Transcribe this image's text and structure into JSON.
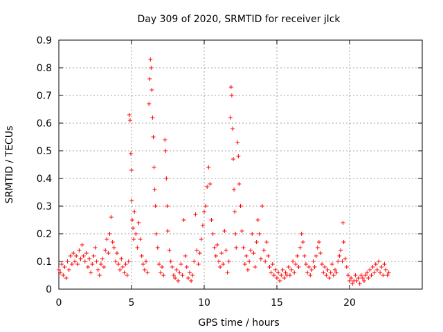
{
  "chart_data": {
    "type": "scatter",
    "title": "Day 309 of 2020, SRMTID for receiver jlck",
    "xlabel": "GPS time / hours",
    "ylabel": "SRMTID / TECUs",
    "xlim": [
      0,
      25
    ],
    "ylim": [
      0,
      0.9
    ],
    "xticks": [
      0,
      5,
      10,
      15,
      20
    ],
    "yticks": [
      0,
      0.1,
      0.2,
      0.3,
      0.4,
      0.5,
      0.6,
      0.7,
      0.8,
      0.9
    ],
    "grid": true,
    "marker": "+",
    "color": "#ff0000",
    "series": [
      {
        "name": "SRMTID",
        "points": [
          [
            0.0,
            0.07
          ],
          [
            0.1,
            0.06
          ],
          [
            0.2,
            0.09
          ],
          [
            0.3,
            0.05
          ],
          [
            0.4,
            0.08
          ],
          [
            0.5,
            0.04
          ],
          [
            0.6,
            0.1
          ],
          [
            0.7,
            0.07
          ],
          [
            0.8,
            0.12
          ],
          [
            0.9,
            0.09
          ],
          [
            1.0,
            0.13
          ],
          [
            1.1,
            0.1
          ],
          [
            1.2,
            0.12
          ],
          [
            1.3,
            0.09
          ],
          [
            1.4,
            0.14
          ],
          [
            1.5,
            0.11
          ],
          [
            1.6,
            0.16
          ],
          [
            1.7,
            0.12
          ],
          [
            1.8,
            0.1
          ],
          [
            1.9,
            0.13
          ],
          [
            2.0,
            0.08
          ],
          [
            2.1,
            0.11
          ],
          [
            2.2,
            0.06
          ],
          [
            2.3,
            0.09
          ],
          [
            2.4,
            0.12
          ],
          [
            2.5,
            0.15
          ],
          [
            2.6,
            0.1
          ],
          [
            2.7,
            0.07
          ],
          [
            2.8,
            0.05
          ],
          [
            2.9,
            0.09
          ],
          [
            3.0,
            0.11
          ],
          [
            3.1,
            0.08
          ],
          [
            3.2,
            0.14
          ],
          [
            3.3,
            0.18
          ],
          [
            3.4,
            0.13
          ],
          [
            3.5,
            0.2
          ],
          [
            3.6,
            0.26
          ],
          [
            3.7,
            0.17
          ],
          [
            3.8,
            0.15
          ],
          [
            3.9,
            0.1
          ],
          [
            4.0,
            0.13
          ],
          [
            4.1,
            0.09
          ],
          [
            4.2,
            0.07
          ],
          [
            4.3,
            0.11
          ],
          [
            4.4,
            0.08
          ],
          [
            4.5,
            0.06
          ],
          [
            4.6,
            0.09
          ],
          [
            4.7,
            0.05
          ],
          [
            4.8,
            0.1
          ],
          [
            4.85,
            0.63
          ],
          [
            4.9,
            0.61
          ],
          [
            4.95,
            0.49
          ],
          [
            5.0,
            0.43
          ],
          [
            5.02,
            0.32
          ],
          [
            5.05,
            0.25
          ],
          [
            5.1,
            0.22
          ],
          [
            5.15,
            0.18
          ],
          [
            5.2,
            0.28
          ],
          [
            5.3,
            0.2
          ],
          [
            5.4,
            0.15
          ],
          [
            5.5,
            0.24
          ],
          [
            5.6,
            0.18
          ],
          [
            5.7,
            0.12
          ],
          [
            5.8,
            0.09
          ],
          [
            5.9,
            0.07
          ],
          [
            6.0,
            0.1
          ],
          [
            6.1,
            0.06
          ],
          [
            6.2,
            0.67
          ],
          [
            6.25,
            0.76
          ],
          [
            6.3,
            0.83
          ],
          [
            6.35,
            0.8
          ],
          [
            6.4,
            0.72
          ],
          [
            6.45,
            0.62
          ],
          [
            6.5,
            0.55
          ],
          [
            6.55,
            0.44
          ],
          [
            6.6,
            0.36
          ],
          [
            6.65,
            0.3
          ],
          [
            6.7,
            0.2
          ],
          [
            6.8,
            0.15
          ],
          [
            6.9,
            0.09
          ],
          [
            7.0,
            0.06
          ],
          [
            7.1,
            0.08
          ],
          [
            7.2,
            0.05
          ],
          [
            7.3,
            0.54
          ],
          [
            7.35,
            0.5
          ],
          [
            7.4,
            0.4
          ],
          [
            7.45,
            0.3
          ],
          [
            7.5,
            0.21
          ],
          [
            7.6,
            0.14
          ],
          [
            7.7,
            0.1
          ],
          [
            7.8,
            0.08
          ],
          [
            7.9,
            0.05
          ],
          [
            8.0,
            0.04
          ],
          [
            8.1,
            0.07
          ],
          [
            8.2,
            0.03
          ],
          [
            8.3,
            0.06
          ],
          [
            8.4,
            0.09
          ],
          [
            8.5,
            0.05
          ],
          [
            8.6,
            0.25
          ],
          [
            8.7,
            0.12
          ],
          [
            8.8,
            0.08
          ],
          [
            8.9,
            0.04
          ],
          [
            9.0,
            0.06
          ],
          [
            9.1,
            0.03
          ],
          [
            9.2,
            0.05
          ],
          [
            9.3,
            0.1
          ],
          [
            9.4,
            0.27
          ],
          [
            9.5,
            0.14
          ],
          [
            9.6,
            0.09
          ],
          [
            9.7,
            0.13
          ],
          [
            9.8,
            0.18
          ],
          [
            9.9,
            0.23
          ],
          [
            10.0,
            0.28
          ],
          [
            10.1,
            0.3
          ],
          [
            10.2,
            0.37
          ],
          [
            10.3,
            0.44
          ],
          [
            10.4,
            0.38
          ],
          [
            10.5,
            0.25
          ],
          [
            10.6,
            0.2
          ],
          [
            10.7,
            0.15
          ],
          [
            10.8,
            0.12
          ],
          [
            10.9,
            0.16
          ],
          [
            11.0,
            0.1
          ],
          [
            11.1,
            0.08
          ],
          [
            11.2,
            0.13
          ],
          [
            11.3,
            0.09
          ],
          [
            11.4,
            0.21
          ],
          [
            11.5,
            0.14
          ],
          [
            11.6,
            0.06
          ],
          [
            11.7,
            0.1
          ],
          [
            11.8,
            0.62
          ],
          [
            11.85,
            0.73
          ],
          [
            11.9,
            0.7
          ],
          [
            11.95,
            0.58
          ],
          [
            12.0,
            0.47
          ],
          [
            12.05,
            0.36
          ],
          [
            12.1,
            0.28
          ],
          [
            12.15,
            0.2
          ],
          [
            12.2,
            0.15
          ],
          [
            12.3,
            0.53
          ],
          [
            12.35,
            0.48
          ],
          [
            12.4,
            0.38
          ],
          [
            12.5,
            0.3
          ],
          [
            12.6,
            0.21
          ],
          [
            12.7,
            0.15
          ],
          [
            12.8,
            0.09
          ],
          [
            12.9,
            0.12
          ],
          [
            13.0,
            0.07
          ],
          [
            13.1,
            0.1
          ],
          [
            13.2,
            0.14
          ],
          [
            13.3,
            0.2
          ],
          [
            13.4,
            0.13
          ],
          [
            13.5,
            0.08
          ],
          [
            13.6,
            0.17
          ],
          [
            13.7,
            0.25
          ],
          [
            13.8,
            0.2
          ],
          [
            13.9,
            0.11
          ],
          [
            14.0,
            0.3
          ],
          [
            14.1,
            0.14
          ],
          [
            14.2,
            0.1
          ],
          [
            14.3,
            0.17
          ],
          [
            14.4,
            0.12
          ],
          [
            14.5,
            0.08
          ],
          [
            14.6,
            0.06
          ],
          [
            14.7,
            0.09
          ],
          [
            14.8,
            0.05
          ],
          [
            14.9,
            0.07
          ],
          [
            15.0,
            0.04
          ],
          [
            15.1,
            0.06
          ],
          [
            15.2,
            0.03
          ],
          [
            15.3,
            0.05
          ],
          [
            15.4,
            0.07
          ],
          [
            15.5,
            0.04
          ],
          [
            15.6,
            0.06
          ],
          [
            15.7,
            0.05
          ],
          [
            15.8,
            0.08
          ],
          [
            15.9,
            0.05
          ],
          [
            16.0,
            0.07
          ],
          [
            16.1,
            0.1
          ],
          [
            16.2,
            0.06
          ],
          [
            16.3,
            0.09
          ],
          [
            16.4,
            0.12
          ],
          [
            16.5,
            0.08
          ],
          [
            16.6,
            0.15
          ],
          [
            16.7,
            0.2
          ],
          [
            16.8,
            0.17
          ],
          [
            16.9,
            0.12
          ],
          [
            17.0,
            0.09
          ],
          [
            17.1,
            0.06
          ],
          [
            17.2,
            0.08
          ],
          [
            17.3,
            0.05
          ],
          [
            17.4,
            0.07
          ],
          [
            17.5,
            0.1
          ],
          [
            17.6,
            0.08
          ],
          [
            17.7,
            0.12
          ],
          [
            17.8,
            0.15
          ],
          [
            17.9,
            0.17
          ],
          [
            18.0,
            0.13
          ],
          [
            18.1,
            0.09
          ],
          [
            18.2,
            0.06
          ],
          [
            18.3,
            0.08
          ],
          [
            18.4,
            0.05
          ],
          [
            18.5,
            0.07
          ],
          [
            18.6,
            0.04
          ],
          [
            18.7,
            0.06
          ],
          [
            18.8,
            0.09
          ],
          [
            18.9,
            0.05
          ],
          [
            19.0,
            0.07
          ],
          [
            19.1,
            0.06
          ],
          [
            19.2,
            0.1
          ],
          [
            19.3,
            0.12
          ],
          [
            19.4,
            0.14
          ],
          [
            19.5,
            0.1
          ],
          [
            19.55,
            0.24
          ],
          [
            19.6,
            0.17
          ],
          [
            19.7,
            0.11
          ],
          [
            19.8,
            0.08
          ],
          [
            19.9,
            0.05
          ],
          [
            20.0,
            0.03
          ],
          [
            20.1,
            0.04
          ],
          [
            20.2,
            0.02
          ],
          [
            20.3,
            0.03
          ],
          [
            20.4,
            0.05
          ],
          [
            20.5,
            0.03
          ],
          [
            20.6,
            0.04
          ],
          [
            20.7,
            0.02
          ],
          [
            20.8,
            0.05
          ],
          [
            20.9,
            0.04
          ],
          [
            21.0,
            0.03
          ],
          [
            21.1,
            0.05
          ],
          [
            21.2,
            0.06
          ],
          [
            21.3,
            0.04
          ],
          [
            21.4,
            0.07
          ],
          [
            21.5,
            0.05
          ],
          [
            21.6,
            0.08
          ],
          [
            21.7,
            0.06
          ],
          [
            21.8,
            0.09
          ],
          [
            21.9,
            0.07
          ],
          [
            22.0,
            0.1
          ],
          [
            22.1,
            0.06
          ],
          [
            22.2,
            0.08
          ],
          [
            22.3,
            0.05
          ],
          [
            22.4,
            0.09
          ],
          [
            22.5,
            0.07
          ],
          [
            22.6,
            0.05
          ],
          [
            22.7,
            0.06
          ]
        ]
      }
    ]
  }
}
